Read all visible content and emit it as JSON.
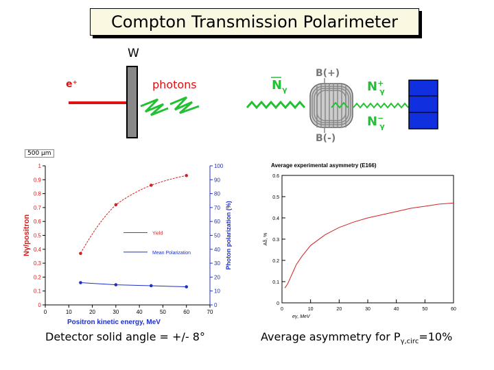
{
  "title": "Compton Transmission Polarimeter",
  "setup": {
    "target_label": "W",
    "beam_label": "e⁺",
    "photons_label": "photons",
    "foil_thickness": "500 μm"
  },
  "diagram": {
    "n_gamma": "N",
    "n_gamma_sub": "γ",
    "n_plus": "N",
    "n_plus_sup": "+",
    "n_minus": "N",
    "n_minus_sup": "−",
    "b_plus": "B(+)",
    "b_minus": "B(-)",
    "colors": {
      "photon": "#22c032",
      "magnet_coil": "#888888",
      "detector": "#1030e0"
    }
  },
  "captions": {
    "left": "Detector solid angle = +/- 8°",
    "right_prefix": "Average asymmetry for P",
    "right_sub": "γ,circ",
    "right_suffix": "=10%"
  },
  "chart_data": [
    {
      "type": "line",
      "title": "",
      "xlabel": "Positron kinetic energy, MeV",
      "ylabel": "Nγ/positron",
      "y2label": "Photon polarization (%)",
      "xlim": [
        0,
        70
      ],
      "ylim": [
        0,
        1
      ],
      "y2lim": [
        0,
        100
      ],
      "xticks": [
        "0",
        "10",
        "20",
        "30",
        "40",
        "50",
        "60",
        "70"
      ],
      "yticks": [
        "0",
        "0.1",
        "0.2",
        "0.3",
        "0.4",
        "0.5",
        "0.6",
        "0.7",
        "0.8",
        "0.9",
        "1"
      ],
      "y2ticks": [
        "0",
        "10",
        "20",
        "30",
        "40",
        "50",
        "60",
        "70",
        "80",
        "90",
        "100"
      ],
      "series": [
        {
          "name": "Yield",
          "color": "#d42020",
          "x": [
            15,
            30,
            45,
            60
          ],
          "y": [
            0.37,
            0.72,
            0.86,
            0.93
          ]
        },
        {
          "name": "Mean Polarization",
          "color": "#1c2fc8",
          "x": [
            15,
            30,
            45,
            60
          ],
          "y": [
            0.16,
            0.145,
            0.138,
            0.13
          ]
        }
      ],
      "legend_position": "center-right"
    },
    {
      "type": "line",
      "title": "Average experimental asymmetry (E166)",
      "xlabel": "eγ, MeV",
      "ylabel": "Aδ, %",
      "xlim": [
        0,
        60
      ],
      "ylim": [
        0,
        0.6
      ],
      "xticks": [
        "0",
        "10",
        "20",
        "30",
        "40",
        "50",
        "60"
      ],
      "yticks": [
        "0",
        "0.1",
        "0.2",
        "0.3",
        "0.4",
        "0.5",
        "0.6"
      ],
      "series": [
        {
          "name": "",
          "color": "#d42020",
          "x": [
            1,
            2,
            3,
            4,
            5,
            7,
            10,
            15,
            20,
            25,
            30,
            35,
            40,
            45,
            50,
            55,
            60
          ],
          "y": [
            0.07,
            0.09,
            0.12,
            0.15,
            0.18,
            0.22,
            0.27,
            0.32,
            0.355,
            0.38,
            0.4,
            0.415,
            0.43,
            0.445,
            0.455,
            0.465,
            0.47
          ]
        }
      ]
    }
  ]
}
